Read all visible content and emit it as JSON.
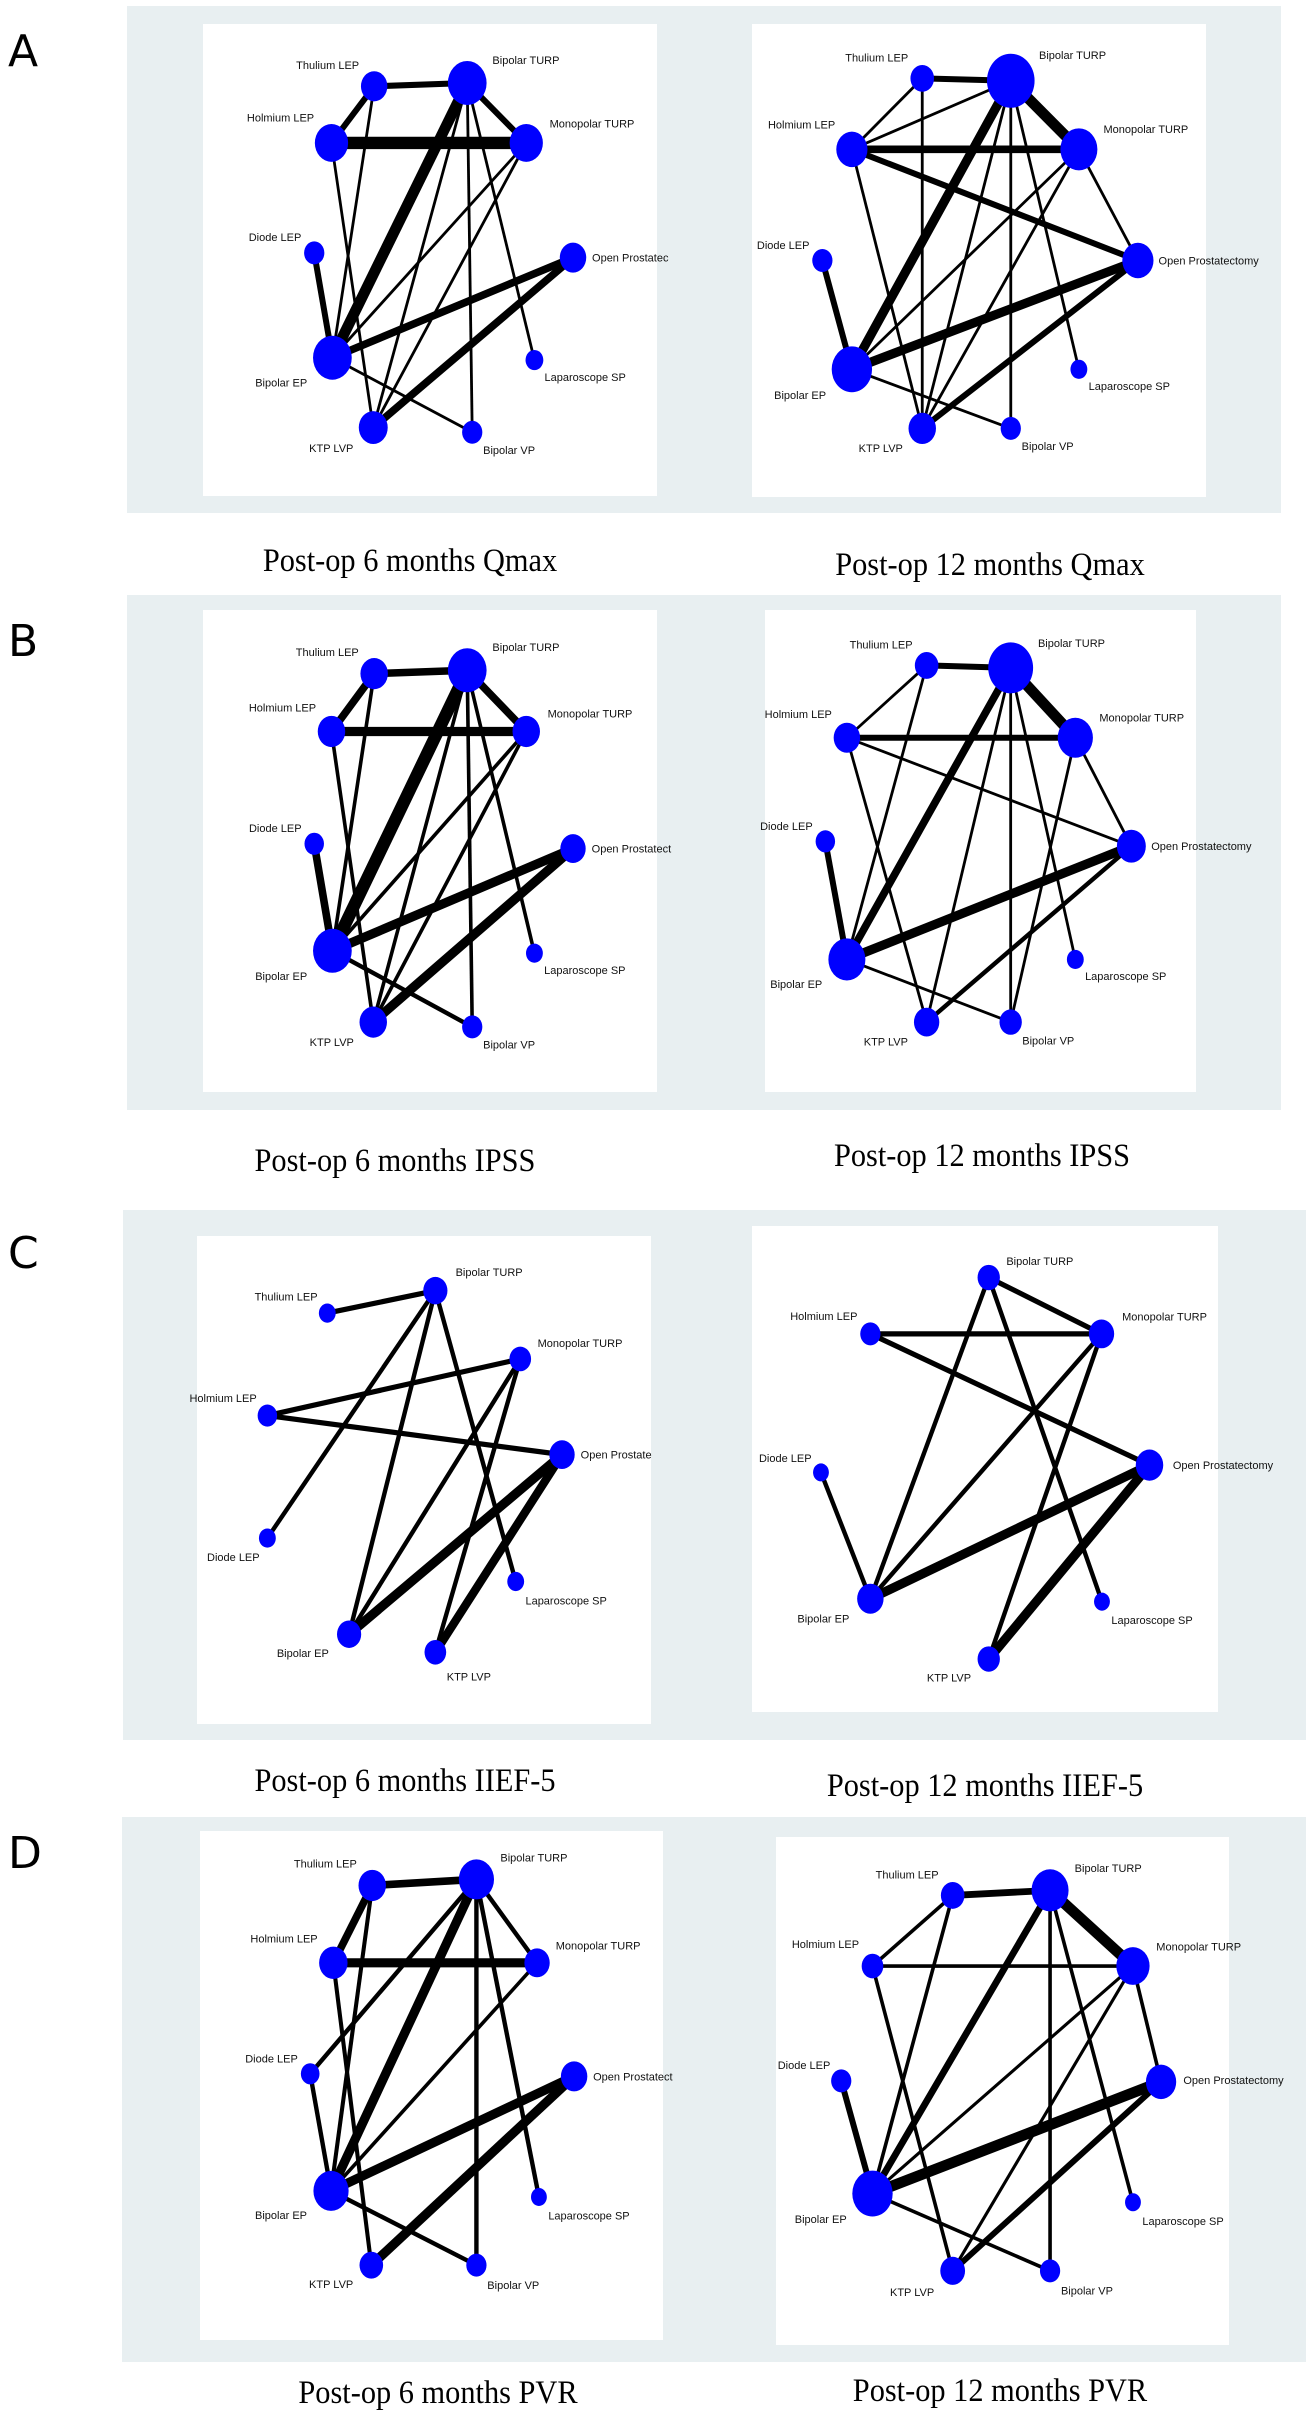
{
  "figure": {
    "node_color": "#0000ff",
    "edge_color": "#000000",
    "frame_color": "#e8eff1",
    "treatments": {
      "thulium": "Thulium LEP",
      "bturp": "Bipolar TURP",
      "holmium": "Holmium LEP",
      "mturp": "Monopolar TURP",
      "diode": "Diode LEP",
      "open": "Open Prostatectomy",
      "bep": "Bipolar EP",
      "lap": "Laparoscope SP",
      "ktp": "KTP LVP",
      "bvp": "Bipolar VP"
    },
    "rows": [
      {
        "letter": "A"
      },
      {
        "letter": "B"
      },
      {
        "letter": "C"
      },
      {
        "letter": "D"
      }
    ]
  },
  "chart_data": [
    {
      "type": "network",
      "id": "A-left",
      "title": "Post-op 6 months Qmax",
      "open_label": "Open Prostatec",
      "nodes": [
        {
          "id": "thulium",
          "size": 2
        },
        {
          "id": "bturp",
          "size": 5
        },
        {
          "id": "holmium",
          "size": 3.5
        },
        {
          "id": "mturp",
          "size": 3.5
        },
        {
          "id": "diode",
          "size": 1
        },
        {
          "id": "open",
          "size": 2
        },
        {
          "id": "bep",
          "size": 5
        },
        {
          "id": "lap",
          "size": 0.7
        },
        {
          "id": "ktp",
          "size": 2.5
        },
        {
          "id": "bvp",
          "size": 1
        }
      ],
      "edges": [
        [
          "thulium",
          "bturp",
          3
        ],
        [
          "thulium",
          "holmium",
          3
        ],
        [
          "thulium",
          "bep",
          1
        ],
        [
          "holmium",
          "mturp",
          7
        ],
        [
          "holmium",
          "ktp",
          1
        ],
        [
          "bturp",
          "mturp",
          3
        ],
        [
          "bturp",
          "bep",
          6
        ],
        [
          "bturp",
          "ktp",
          1
        ],
        [
          "bturp",
          "bvp",
          1
        ],
        [
          "bturp",
          "lap",
          1
        ],
        [
          "mturp",
          "bep",
          1
        ],
        [
          "mturp",
          "ktp",
          1
        ],
        [
          "diode",
          "bep",
          3
        ],
        [
          "open",
          "bep",
          4
        ],
        [
          "open",
          "ktp",
          4
        ],
        [
          "bep",
          "bvp",
          1
        ]
      ]
    },
    {
      "type": "network",
      "id": "A-right",
      "title": "Post-op 12 months Qmax",
      "open_label": "Open Prostatectomy",
      "nodes": [
        {
          "id": "thulium",
          "size": 1.5
        },
        {
          "id": "bturp",
          "size": 8
        },
        {
          "id": "holmium",
          "size": 3
        },
        {
          "id": "mturp",
          "size": 4.5
        },
        {
          "id": "diode",
          "size": 1
        },
        {
          "id": "open",
          "size": 3
        },
        {
          "id": "bep",
          "size": 5.5
        },
        {
          "id": "lap",
          "size": 0.6
        },
        {
          "id": "ktp",
          "size": 2.2
        },
        {
          "id": "bvp",
          "size": 1
        }
      ],
      "edges": [
        [
          "thulium",
          "bturp",
          3
        ],
        [
          "thulium",
          "holmium",
          1
        ],
        [
          "thulium",
          "ktp",
          1
        ],
        [
          "holmium",
          "bturp",
          1
        ],
        [
          "holmium",
          "mturp",
          4
        ],
        [
          "holmium",
          "open",
          3
        ],
        [
          "holmium",
          "ktp",
          1
        ],
        [
          "bturp",
          "mturp",
          6
        ],
        [
          "bturp",
          "bep",
          5
        ],
        [
          "bturp",
          "ktp",
          1
        ],
        [
          "bturp",
          "bvp",
          1
        ],
        [
          "bturp",
          "lap",
          1
        ],
        [
          "mturp",
          "open",
          1
        ],
        [
          "mturp",
          "bep",
          1
        ],
        [
          "mturp",
          "ktp",
          1
        ],
        [
          "diode",
          "bep",
          3
        ],
        [
          "open",
          "bep",
          5
        ],
        [
          "open",
          "ktp",
          3
        ],
        [
          "bep",
          "bvp",
          1
        ]
      ]
    },
    {
      "type": "network",
      "id": "B-left",
      "title": "Post-op 6 months IPSS",
      "open_label": "Open Prostatect",
      "nodes": [
        {
          "id": "thulium",
          "size": 2.2
        },
        {
          "id": "bturp",
          "size": 5
        },
        {
          "id": "holmium",
          "size": 2.2
        },
        {
          "id": "mturp",
          "size": 2.2
        },
        {
          "id": "diode",
          "size": 0.9
        },
        {
          "id": "open",
          "size": 1.8
        },
        {
          "id": "bep",
          "size": 5
        },
        {
          "id": "lap",
          "size": 0.6
        },
        {
          "id": "ktp",
          "size": 2.2
        },
        {
          "id": "bvp",
          "size": 1
        }
      ],
      "edges": [
        [
          "thulium",
          "bturp",
          4
        ],
        [
          "thulium",
          "holmium",
          4
        ],
        [
          "thulium",
          "bep",
          1.5
        ],
        [
          "holmium",
          "mturp",
          5
        ],
        [
          "holmium",
          "ktp",
          1.5
        ],
        [
          "bturp",
          "mturp",
          4
        ],
        [
          "bturp",
          "bep",
          7
        ],
        [
          "bturp",
          "ktp",
          1.5
        ],
        [
          "bturp",
          "bvp",
          1.5
        ],
        [
          "bturp",
          "lap",
          1.5
        ],
        [
          "mturp",
          "bep",
          1.5
        ],
        [
          "mturp",
          "ktp",
          1.5
        ],
        [
          "diode",
          "bep",
          4
        ],
        [
          "open",
          "bep",
          5
        ],
        [
          "open",
          "ktp",
          5
        ],
        [
          "bep",
          "bvp",
          2
        ]
      ]
    },
    {
      "type": "network",
      "id": "B-right",
      "title": "Post-op 12 months IPSS",
      "open_label": "Open Prostatectomy",
      "nodes": [
        {
          "id": "thulium",
          "size": 1.5
        },
        {
          "id": "bturp",
          "size": 7
        },
        {
          "id": "holmium",
          "size": 2
        },
        {
          "id": "mturp",
          "size": 4
        },
        {
          "id": "diode",
          "size": 0.9
        },
        {
          "id": "open",
          "size": 2.5
        },
        {
          "id": "bep",
          "size": 4.5
        },
        {
          "id": "lap",
          "size": 0.6
        },
        {
          "id": "ktp",
          "size": 1.8
        },
        {
          "id": "bvp",
          "size": 1.3
        }
      ],
      "edges": [
        [
          "thulium",
          "bturp",
          3
        ],
        [
          "thulium",
          "holmium",
          1
        ],
        [
          "thulium",
          "bep",
          1
        ],
        [
          "holmium",
          "mturp",
          3
        ],
        [
          "holmium",
          "open",
          1
        ],
        [
          "holmium",
          "ktp",
          1
        ],
        [
          "bturp",
          "mturp",
          6
        ],
        [
          "bturp",
          "bep",
          4
        ],
        [
          "bturp",
          "ktp",
          1
        ],
        [
          "bturp",
          "bvp",
          1
        ],
        [
          "bturp",
          "lap",
          1
        ],
        [
          "mturp",
          "open",
          1
        ],
        [
          "mturp",
          "bvp",
          1
        ],
        [
          "diode",
          "bep",
          3
        ],
        [
          "open",
          "bep",
          5
        ],
        [
          "open",
          "ktp",
          2
        ],
        [
          "bep",
          "bvp",
          1
        ]
      ]
    },
    {
      "type": "network",
      "id": "C-left",
      "title": "Post-op 6 months IIEF-5",
      "open_label": "Open Prostate",
      "nodes": [
        {
          "id": "bturp",
          "size": 1.6
        },
        {
          "id": "thulium",
          "size": 0.6
        },
        {
          "id": "mturp",
          "size": 1.2
        },
        {
          "id": "holmium",
          "size": 0.9
        },
        {
          "id": "open",
          "size": 1.8
        },
        {
          "id": "diode",
          "size": 0.6
        },
        {
          "id": "lap",
          "size": 0.6
        },
        {
          "id": "bep",
          "size": 1.6
        },
        {
          "id": "ktp",
          "size": 1.2
        }
      ],
      "edges": [
        [
          "thulium",
          "bturp",
          2.5
        ],
        [
          "bturp",
          "diode",
          2
        ],
        [
          "bturp",
          "bep",
          2
        ],
        [
          "bturp",
          "lap",
          2
        ],
        [
          "mturp",
          "holmium",
          2.5
        ],
        [
          "mturp",
          "bep",
          2
        ],
        [
          "mturp",
          "ktp",
          2
        ],
        [
          "holmium",
          "open",
          2.5
        ],
        [
          "open",
          "bep",
          5
        ],
        [
          "open",
          "ktp",
          4.5
        ]
      ]
    },
    {
      "type": "network",
      "id": "C-right",
      "title": "Post-op 12 months IIEF-5",
      "open_label": "Open Prostatectomy",
      "nodes": [
        {
          "id": "bturp",
          "size": 1.3
        },
        {
          "id": "holmium",
          "size": 1
        },
        {
          "id": "mturp",
          "size": 1.8
        },
        {
          "id": "diode",
          "size": 0.5
        },
        {
          "id": "open",
          "size": 2.2
        },
        {
          "id": "bep",
          "size": 2
        },
        {
          "id": "lap",
          "size": 0.5
        },
        {
          "id": "ktp",
          "size": 1.3
        }
      ],
      "edges": [
        [
          "bturp",
          "mturp",
          2.5
        ],
        [
          "bturp",
          "bep",
          2
        ],
        [
          "bturp",
          "lap",
          2
        ],
        [
          "holmium",
          "mturp",
          2.5
        ],
        [
          "holmium",
          "open",
          2.5
        ],
        [
          "mturp",
          "bep",
          2
        ],
        [
          "mturp",
          "ktp",
          2
        ],
        [
          "diode",
          "bep",
          2
        ],
        [
          "open",
          "bep",
          5
        ],
        [
          "open",
          "ktp",
          5
        ]
      ]
    },
    {
      "type": "network",
      "id": "D-left",
      "title": "Post-op 6 months PVR",
      "open_label": "Open Prostatect",
      "nodes": [
        {
          "id": "thulium",
          "size": 2.2
        },
        {
          "id": "bturp",
          "size": 4
        },
        {
          "id": "holmium",
          "size": 2.4
        },
        {
          "id": "mturp",
          "size": 1.8
        },
        {
          "id": "diode",
          "size": 0.8
        },
        {
          "id": "open",
          "size": 2
        },
        {
          "id": "bep",
          "size": 4
        },
        {
          "id": "lap",
          "size": 0.5
        },
        {
          "id": "ktp",
          "size": 1.5
        },
        {
          "id": "bvp",
          "size": 1
        }
      ],
      "edges": [
        [
          "thulium",
          "bturp",
          4
        ],
        [
          "thulium",
          "holmium",
          4
        ],
        [
          "thulium",
          "bep",
          1.8
        ],
        [
          "holmium",
          "mturp",
          5
        ],
        [
          "holmium",
          "ktp",
          1.8
        ],
        [
          "bturp",
          "mturp",
          2
        ],
        [
          "bturp",
          "bep",
          5
        ],
        [
          "bturp",
          "bvp",
          2
        ],
        [
          "bturp",
          "lap",
          2
        ],
        [
          "bturp",
          "diode",
          2
        ],
        [
          "mturp",
          "bep",
          1.5
        ],
        [
          "diode",
          "bep",
          2
        ],
        [
          "open",
          "bep",
          5
        ],
        [
          "open",
          "ktp",
          5
        ],
        [
          "bep",
          "bvp",
          2
        ]
      ]
    },
    {
      "type": "network",
      "id": "D-right",
      "title": "Post-op 12 months PVR",
      "open_label": "Open Prostatectomy",
      "nodes": [
        {
          "id": "thulium",
          "size": 1.5
        },
        {
          "id": "bturp",
          "size": 4.5
        },
        {
          "id": "holmium",
          "size": 1.2
        },
        {
          "id": "mturp",
          "size": 3.5
        },
        {
          "id": "diode",
          "size": 1
        },
        {
          "id": "open",
          "size": 2.8
        },
        {
          "id": "bep",
          "size": 5.5
        },
        {
          "id": "lap",
          "size": 0.5
        },
        {
          "id": "ktp",
          "size": 1.7
        },
        {
          "id": "bvp",
          "size": 1
        }
      ],
      "edges": [
        [
          "thulium",
          "bturp",
          3.5
        ],
        [
          "thulium",
          "holmium",
          1.5
        ],
        [
          "thulium",
          "bep",
          1.5
        ],
        [
          "holmium",
          "mturp",
          1.5
        ],
        [
          "holmium",
          "ktp",
          1.5
        ],
        [
          "bturp",
          "mturp",
          6
        ],
        [
          "bturp",
          "bep",
          3.5
        ],
        [
          "bturp",
          "bvp",
          1.5
        ],
        [
          "bturp",
          "lap",
          1.5
        ],
        [
          "mturp",
          "open",
          1.5
        ],
        [
          "mturp",
          "bep",
          1.2
        ],
        [
          "mturp",
          "ktp",
          1.2
        ],
        [
          "diode",
          "bep",
          3
        ],
        [
          "open",
          "bep",
          6
        ],
        [
          "open",
          "ktp",
          3
        ],
        [
          "bep",
          "bvp",
          1.5
        ]
      ]
    }
  ]
}
